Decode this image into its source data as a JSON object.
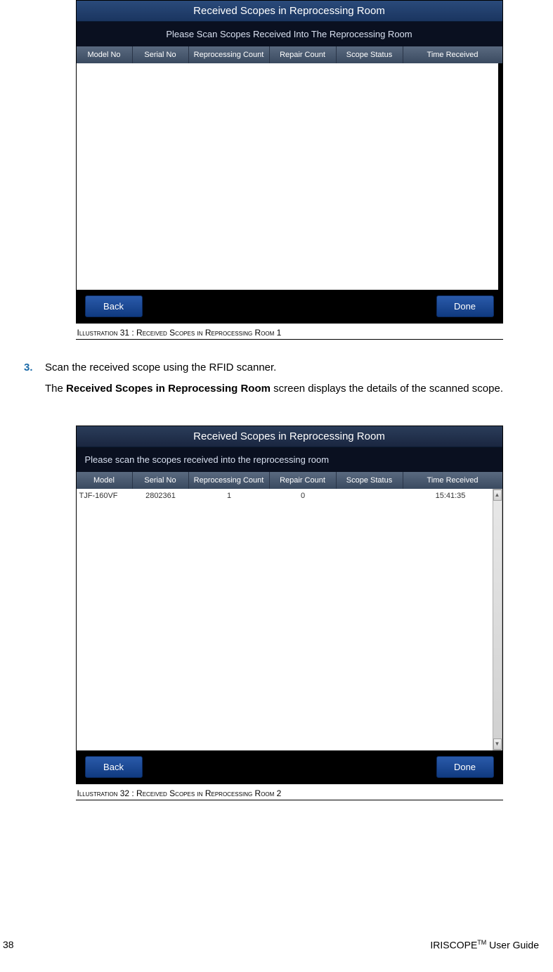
{
  "screenshot1": {
    "title": "Received Scopes in Reprocessing Room",
    "subtitle": "Please Scan Scopes Received Into The Reprocessing Room",
    "columns": [
      "Model No",
      "Serial No",
      "Reprocessing Count",
      "Repair Count",
      "Scope Status",
      "Time Received"
    ],
    "buttons": {
      "back": "Back",
      "done": "Done"
    },
    "caption": "Illustration 31 : Received Scopes in Reprocessing Room 1",
    "title_bg_gradient": [
      "#2a4a7a",
      "#1a3560"
    ],
    "header_bg_gradient": [
      "#5a6a80",
      "#3a4a60"
    ],
    "button_bg_gradient": [
      "#2a5aaa",
      "#103a80"
    ],
    "background_color": "#ffffff"
  },
  "step": {
    "number": "3.",
    "line1": "Scan the received scope using the RFID scanner.",
    "line2_pre": "The ",
    "line2_bold": "Received Scopes in Reprocessing Room",
    "line2_post": "  screen displays the details of the scanned scope.",
    "number_color": "#1a6aa8"
  },
  "screenshot2": {
    "title": "Received Scopes in Reprocessing Room",
    "subtitle": "Please scan the scopes received into the reprocessing room",
    "columns": [
      "Model",
      "Serial No",
      "Reprocessing Count",
      "Repair Count",
      "Scope Status",
      "Time Received"
    ],
    "row": {
      "model": "TJF-160VF",
      "serial": "2802361",
      "reproc": "1",
      "repair": "0",
      "status": "",
      "time": "15:41:35"
    },
    "buttons": {
      "back": "Back",
      "done": "Done"
    },
    "caption": "Illustration 32 : Received Scopes in Reprocessing Room 2"
  },
  "footer": {
    "page": "38",
    "guide_pre": "IRISCOPE",
    "guide_tm": "TM",
    "guide_post": " User Guide"
  }
}
